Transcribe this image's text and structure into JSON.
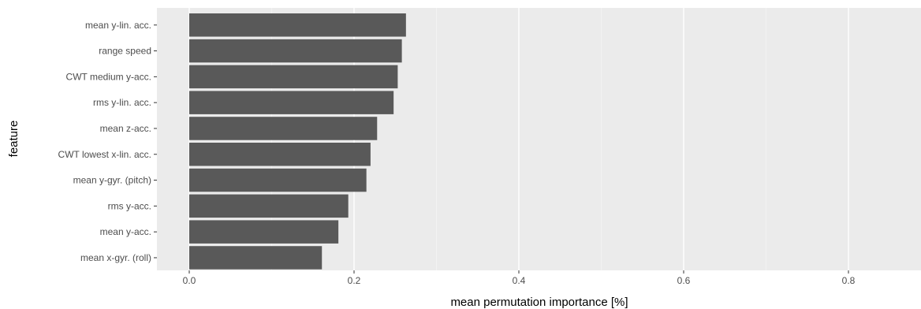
{
  "chart_data": {
    "type": "bar",
    "orientation": "horizontal",
    "categories": [
      "mean y-lin. acc.",
      "range speed",
      "CWT medium y-acc.",
      "rms y-lin. acc.",
      "mean z-acc.",
      "CWT lowest x-lin. acc.",
      "mean y-gyr. (pitch)",
      "rms y-acc.",
      "mean y-acc.",
      "mean x-gyr. (roll)"
    ],
    "values": [
      0.263,
      0.258,
      0.253,
      0.248,
      0.228,
      0.22,
      0.215,
      0.193,
      0.181,
      0.161
    ],
    "xlabel": "mean permutation importance [%]",
    "ylabel": "feature",
    "xlim": [
      -0.035,
      0.88
    ],
    "xticks": [
      "0.0",
      "0.2",
      "0.4",
      "0.6",
      "0.8"
    ],
    "grid": true,
    "legend": "none",
    "colors": {
      "bar": "#595959",
      "panel": "#ebebeb",
      "grid_major": "#ffffff",
      "grid_minor": "#f4f4f4",
      "tick_text": "#4d4d4d",
      "tick_mark": "#333333"
    }
  }
}
